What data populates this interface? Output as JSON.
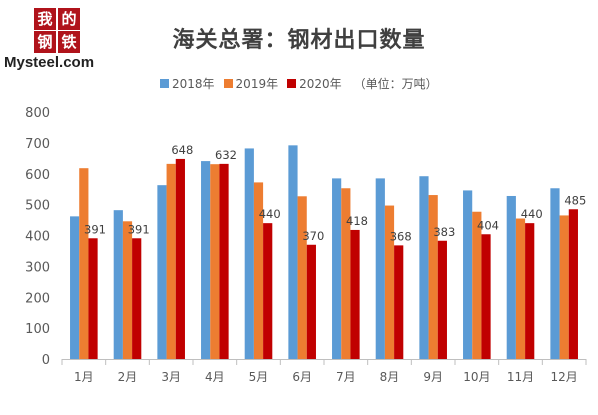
{
  "logo": {
    "chars": [
      "我",
      "的",
      "钢",
      "铁"
    ],
    "en": "Mysteel.com",
    "color": "#b0131b"
  },
  "legend_unit": "（单位：万吨）",
  "chart_data": {
    "type": "bar",
    "title": "海关总署：钢材出口数量",
    "xlabel": "",
    "ylabel": "",
    "categories": [
      "1月",
      "2月",
      "3月",
      "4月",
      "5月",
      "6月",
      "7月",
      "8月",
      "9月",
      "10月",
      "11月",
      "12月"
    ],
    "ylim": [
      0,
      800
    ],
    "yticks": [
      0,
      100,
      200,
      300,
      400,
      500,
      600,
      700,
      800
    ],
    "grid": false,
    "legend_position": "top",
    "series": [
      {
        "name": "2018年",
        "color": "#5b9bd5",
        "values": [
          462,
          482,
          563,
          641,
          682,
          692,
          585,
          585,
          592,
          546,
          528,
          553
        ]
      },
      {
        "name": "2019年",
        "color": "#ed7d31",
        "values": [
          618,
          446,
          632,
          631,
          572,
          527,
          553,
          497,
          531,
          477,
          455,
          465
        ]
      },
      {
        "name": "2020年",
        "color": "#c00000",
        "values": [
          391,
          391,
          648,
          632,
          440,
          370,
          418,
          368,
          383,
          404,
          440,
          485
        ]
      }
    ],
    "labeled_series": "2020年"
  }
}
